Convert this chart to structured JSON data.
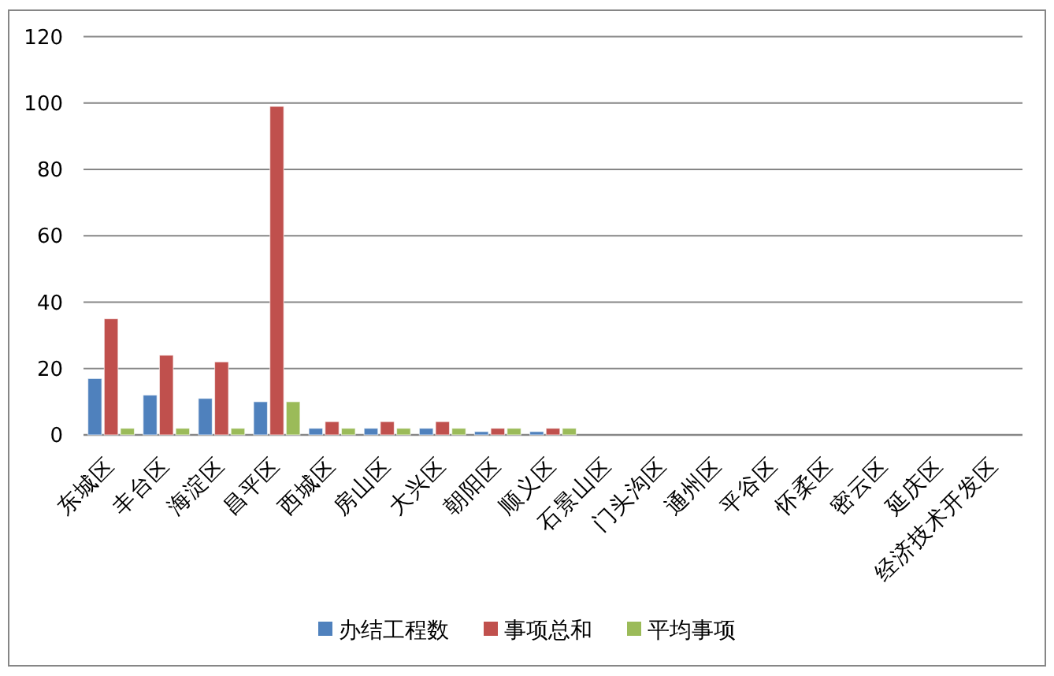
{
  "chart_data": {
    "type": "bar",
    "categories": [
      "东城区",
      "丰台区",
      "海淀区",
      "昌平区",
      "西城区",
      "房山区",
      "大兴区",
      "朝阳区",
      "顺义区",
      "石景山区",
      "门头沟区",
      "通州区",
      "平谷区",
      "怀柔区",
      "密云区",
      "延庆区",
      "经济技术开发区"
    ],
    "series": [
      {
        "name": "办结工程数",
        "color": "#4f81bd",
        "values": [
          17,
          12,
          11,
          10,
          2,
          2,
          2,
          1,
          1,
          null,
          null,
          null,
          null,
          null,
          null,
          null,
          null
        ]
      },
      {
        "name": "事项总和",
        "color": "#c0504d",
        "values": [
          35,
          24,
          22,
          99,
          4,
          4,
          4,
          2,
          2,
          null,
          null,
          null,
          null,
          null,
          null,
          null,
          null
        ]
      },
      {
        "name": "平均事项",
        "color": "#9bbb59",
        "values": [
          2,
          2,
          2,
          10,
          2,
          2,
          2,
          2,
          2,
          null,
          null,
          null,
          null,
          null,
          null,
          null,
          null
        ]
      }
    ],
    "ylim": [
      0,
      120
    ],
    "yticks": [
      0,
      20,
      40,
      60,
      80,
      100,
      120
    ],
    "grid": "y",
    "legend": "bottom"
  }
}
